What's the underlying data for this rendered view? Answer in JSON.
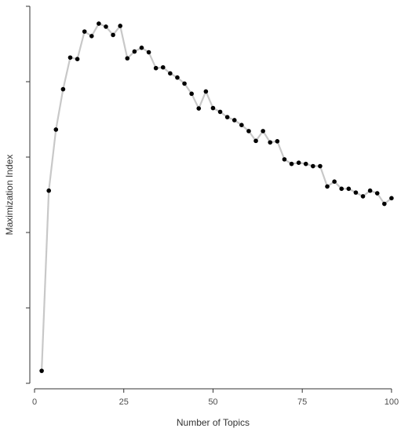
{
  "chart_data": {
    "type": "line",
    "title": "",
    "xlabel": "Number of Topics",
    "ylabel": "Maximization Index",
    "xlim": [
      0,
      102
    ],
    "ylim": [
      0,
      1
    ],
    "xticks": [
      0,
      25,
      50,
      75,
      100
    ],
    "xtick_labels": [
      "0",
      "25",
      "50",
      "75",
      "100"
    ],
    "yticks": [
      0.0,
      0.2,
      0.4,
      0.6,
      0.8,
      1.0
    ],
    "ytick_labels": [
      "",
      "",
      "",
      "",
      "",
      ""
    ],
    "grid": false,
    "line_color": "#c8c8c8",
    "marker_color": "#000000",
    "series": [
      {
        "x": [
          2,
          4,
          6,
          8,
          10,
          12,
          14,
          16,
          18,
          20,
          22,
          24,
          26,
          28,
          30,
          32,
          34,
          36,
          38,
          40,
          42,
          44,
          46,
          48,
          50,
          52,
          54,
          56,
          58,
          60,
          62,
          64,
          66,
          68,
          70,
          72,
          74,
          76,
          78,
          80,
          82,
          84,
          86,
          88,
          90,
          92,
          94,
          96,
          98,
          100
        ],
        "y": [
          0.033,
          0.511,
          0.673,
          0.78,
          0.864,
          0.86,
          0.933,
          0.921,
          0.954,
          0.946,
          0.924,
          0.948,
          0.862,
          0.88,
          0.89,
          0.878,
          0.836,
          0.838,
          0.822,
          0.811,
          0.795,
          0.768,
          0.729,
          0.774,
          0.73,
          0.72,
          0.706,
          0.698,
          0.685,
          0.669,
          0.643,
          0.669,
          0.639,
          0.642,
          0.594,
          0.582,
          0.585,
          0.582,
          0.576,
          0.576,
          0.522,
          0.535,
          0.516,
          0.516,
          0.506,
          0.496,
          0.511,
          0.504,
          0.476,
          0.491
        ]
      }
    ]
  }
}
